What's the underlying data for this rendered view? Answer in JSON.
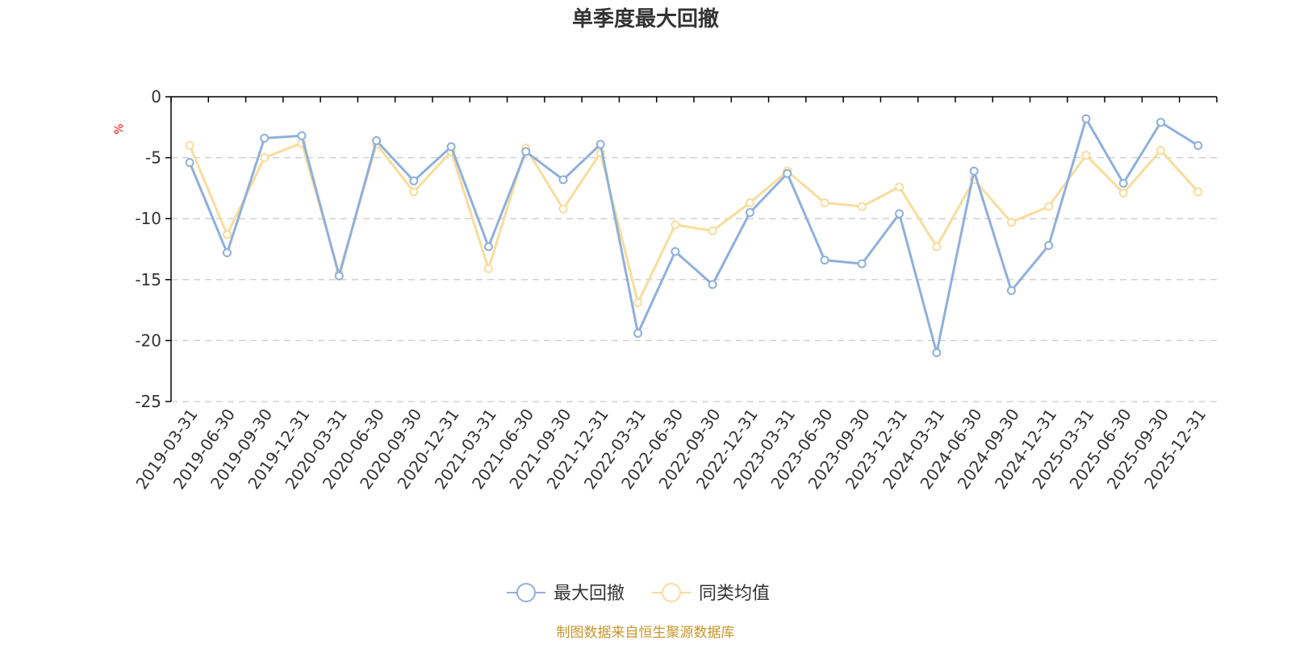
{
  "chart_data": {
    "type": "line",
    "title": "单季度最大回撤",
    "ylabel": "%",
    "ylim": [
      -25,
      0
    ],
    "yticks": [
      0,
      -5,
      -10,
      -15,
      -20,
      -25
    ],
    "grid": true,
    "legend_position": "bottom",
    "categories": [
      "2019-03-31",
      "2019-06-30",
      "2019-09-30",
      "2019-12-31",
      "2020-03-31",
      "2020-06-30",
      "2020-09-30",
      "2020-12-31",
      "2021-03-31",
      "2021-06-30",
      "2021-09-30",
      "2021-12-31",
      "2022-03-31",
      "2022-06-30",
      "2022-09-30",
      "2022-12-31",
      "2023-03-31",
      "2023-06-30",
      "2023-09-30",
      "2023-12-31",
      "2024-03-31",
      "2024-06-30",
      "2024-09-30",
      "2024-12-31",
      "2025-03-31",
      "2025-06-30",
      "2025-09-30",
      "2025-12-31"
    ],
    "series": [
      {
        "name": "最大回撤",
        "color": "#8eb0dc",
        "values": [
          -5.4,
          -12.8,
          -3.4,
          -3.2,
          -14.7,
          -3.6,
          -6.9,
          -4.1,
          -12.3,
          -4.5,
          -6.8,
          -3.9,
          -19.4,
          -12.7,
          -15.4,
          -9.5,
          -6.3,
          -13.4,
          -13.7,
          -9.6,
          -21.0,
          -6.1,
          -15.9,
          -12.2,
          -1.8,
          -7.1,
          -2.1,
          -4.0
        ]
      },
      {
        "name": "同类均值",
        "color": "#f9dc9c",
        "values": [
          -4.0,
          -11.3,
          -5.0,
          -3.8,
          -14.5,
          -3.9,
          -7.8,
          -4.5,
          -14.1,
          -4.2,
          -9.2,
          -4.6,
          -16.9,
          -10.5,
          -11.0,
          -8.7,
          -6.1,
          -8.7,
          -9.0,
          -7.4,
          -12.3,
          -6.8,
          -10.3,
          -9.0,
          -4.8,
          -7.9,
          -4.4,
          -7.8
        ]
      }
    ],
    "source_note": "制图数据来自恒生聚源数据库",
    "colors": {
      "axis": "#000000",
      "grid": "#cccccc",
      "unit": "#ff0000",
      "source": "#c8962d",
      "text": "#333333"
    }
  }
}
